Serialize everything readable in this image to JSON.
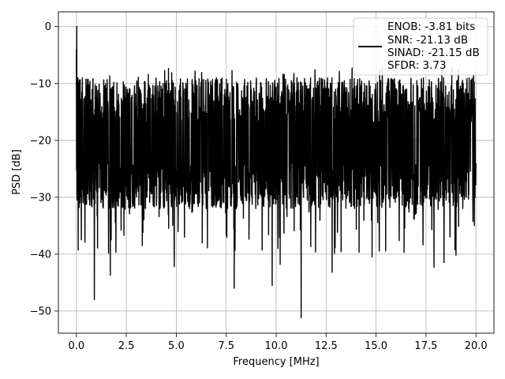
{
  "chart_data": {
    "type": "line",
    "xlabel": "Frequency [MHz]",
    "ylabel": "PSD [dB]",
    "xlim": [
      -0.9,
      20.9
    ],
    "ylim": [
      -53.9,
      2.6
    ],
    "x_ticks": [
      0.0,
      2.5,
      5.0,
      7.5,
      10.0,
      12.5,
      15.0,
      17.5,
      20.0
    ],
    "x_tick_labels": [
      "0.0",
      "2.5",
      "5.0",
      "7.5",
      "10.0",
      "12.5",
      "15.0",
      "17.5",
      "20.0"
    ],
    "y_ticks": [
      0,
      -10,
      -20,
      -30,
      -40,
      -50
    ],
    "y_tick_labels": [
      "0",
      "−10",
      "−20",
      "−30",
      "−40",
      "−50"
    ],
    "grid": true,
    "legend_position": "upper-right",
    "legend_lines": [
      "ENOB: -3.81 bits",
      "SNR: -21.13 dB",
      "SINAD: -21.15 dB",
      "SFDR: 3.73"
    ],
    "series": [
      {
        "color": "#000000",
        "noise_band": {
          "typical_top_db": -13,
          "typical_bottom_db": -28
        },
        "x": [
          0.0,
          0.02,
          0.05,
          0.08,
          0.12,
          0.18,
          0.25,
          0.3,
          0.9,
          1.7,
          3.3,
          4.9,
          6.3,
          7.9,
          9.8,
          10.2,
          11.25,
          12.8,
          14.8,
          16.4,
          17.9,
          18.4,
          19.0,
          20.0
        ],
        "y": [
          -4,
          0.0,
          -22,
          -9,
          -17,
          -25,
          -37.5,
          -9,
          -48,
          -43.7,
          -38.5,
          -42.2,
          -38,
          -46,
          -45.5,
          -41.8,
          -51.2,
          -43.2,
          -40.5,
          -39.7,
          -42.3,
          -41.5,
          -40.2,
          -24
        ]
      }
    ]
  }
}
